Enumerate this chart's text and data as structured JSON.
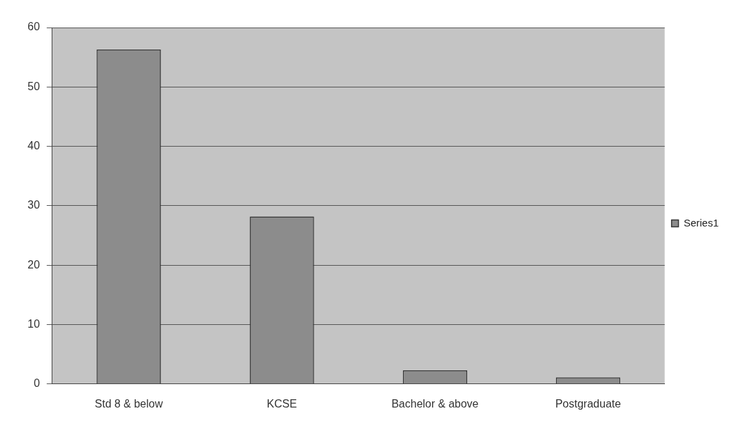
{
  "chart_data": {
    "type": "bar",
    "categories": [
      "Std 8 & below",
      "KCSE",
      "Bachelor & above",
      "Postgraduate"
    ],
    "series": [
      {
        "name": "Series1",
        "color": "#8c8c8c",
        "values": [
          56.3,
          28.2,
          2.3,
          1.1
        ]
      }
    ],
    "ylim": [
      0,
      60
    ],
    "yticks": [
      0,
      10,
      20,
      30,
      40,
      50,
      60
    ],
    "grid": "y",
    "legend": "right"
  }
}
